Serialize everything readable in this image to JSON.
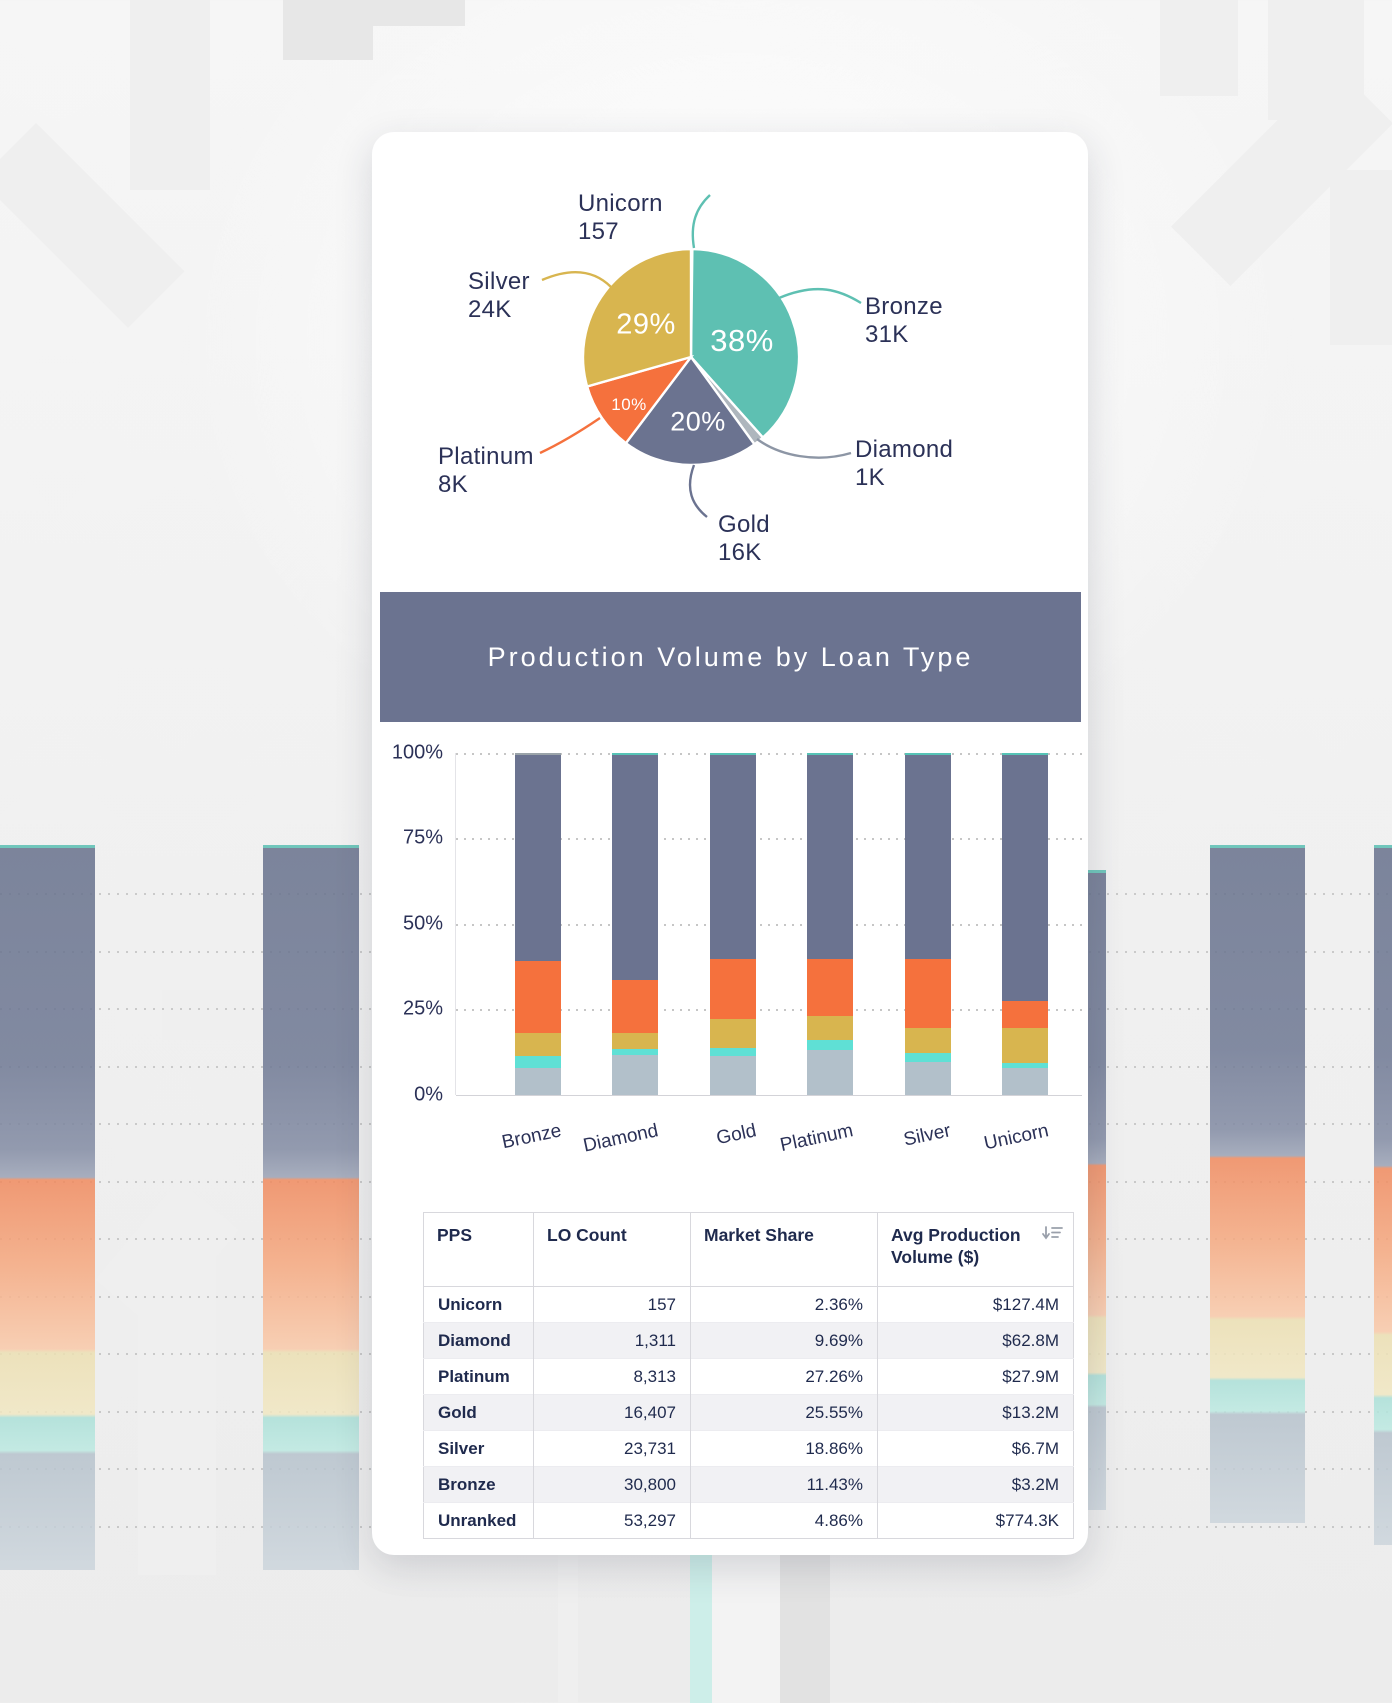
{
  "card": {
    "section_header": "Production Volume by Loan Type"
  },
  "chart_data": [
    {
      "type": "pie",
      "title": "",
      "legend_position": "callout-labels",
      "slices": [
        {
          "label": "Unicorn",
          "count_label": "157",
          "share_pct": 0.2,
          "display_pct": "",
          "color": "#5ec0b2"
        },
        {
          "label": "Bronze",
          "count_label": "31K",
          "share_pct": 38.2,
          "display_pct": "38%",
          "color": "#5ec0b2"
        },
        {
          "label": "Diamond",
          "count_label": "1K",
          "share_pct": 1.6,
          "display_pct": "",
          "color": "#aeb6bd"
        },
        {
          "label": "Gold",
          "count_label": "16K",
          "share_pct": 20.3,
          "display_pct": "20%",
          "color": "#6b7390"
        },
        {
          "label": "Platinum",
          "count_label": "8K",
          "share_pct": 10.3,
          "display_pct": "10%",
          "color": "#f5713d"
        },
        {
          "label": "Silver",
          "count_label": "24K",
          "share_pct": 29.4,
          "display_pct": "29%",
          "color": "#d8b54f"
        }
      ]
    },
    {
      "type": "bar",
      "stacked": true,
      "percent_stacked": true,
      "title": "Production Volume by Loan Type",
      "categories": [
        "Bronze",
        "Diamond",
        "Gold",
        "Platinum",
        "Silver",
        "Unicorn"
      ],
      "y_ticks": [
        "100%",
        "75%",
        "50%",
        "25%",
        "0%"
      ],
      "ylim": [
        0,
        100
      ],
      "grid": "dashed-horizontal",
      "legend_position": "none",
      "series": [
        {
          "name": "segment-gray",
          "color": "#b2c0ca",
          "values": [
            8.0,
            11.8,
            11.5,
            13.2,
            9.7,
            7.9
          ]
        },
        {
          "name": "segment-cyan",
          "color": "#5fe0d5",
          "values": [
            3.3,
            1.7,
            2.2,
            2.8,
            2.7,
            1.5
          ]
        },
        {
          "name": "segment-gold",
          "color": "#d8b54f",
          "values": [
            6.9,
            4.6,
            8.6,
            7.2,
            7.3,
            10.3
          ]
        },
        {
          "name": "segment-orange",
          "color": "#f5713d",
          "values": [
            20.9,
            15.4,
            17.4,
            16.5,
            20.0,
            7.7
          ]
        },
        {
          "name": "segment-slate",
          "color": "#6b7390",
          "values": [
            60.2,
            66.0,
            59.8,
            59.8,
            59.8,
            72.1
          ]
        },
        {
          "name": "segment-teal-cap",
          "color": "#56c3b6",
          "colors": [
            "#9aa3a9",
            null,
            null,
            null,
            null,
            null
          ],
          "values": [
            0.7,
            0.5,
            0.5,
            0.5,
            0.5,
            0.5
          ]
        }
      ]
    }
  ],
  "table": {
    "headers": [
      "PPS",
      "LO Count",
      "Market Share",
      "Avg Production Volume ($)"
    ],
    "sort_icon": "sort-descending",
    "sort_icon_column": 3,
    "rows": [
      {
        "pps": "Unicorn",
        "lo_count": "157",
        "market_share": "2.36%",
        "avg_production_volume": "$127.4M"
      },
      {
        "pps": "Diamond",
        "lo_count": "1,311",
        "market_share": "9.69%",
        "avg_production_volume": "$62.8M"
      },
      {
        "pps": "Platinum",
        "lo_count": "8,313",
        "market_share": "27.26%",
        "avg_production_volume": "$27.9M"
      },
      {
        "pps": "Gold",
        "lo_count": "16,407",
        "market_share": "25.55%",
        "avg_production_volume": "$13.2M"
      },
      {
        "pps": "Silver",
        "lo_count": "23,731",
        "market_share": "18.86%",
        "avg_production_volume": "$6.7M"
      },
      {
        "pps": "Bronze",
        "lo_count": "30,800",
        "market_share": "11.43%",
        "avg_production_volume": "$3.2M"
      },
      {
        "pps": "Unranked",
        "lo_count": "53,297",
        "market_share": "4.86%",
        "avg_production_volume": "$774.3K"
      }
    ]
  }
}
